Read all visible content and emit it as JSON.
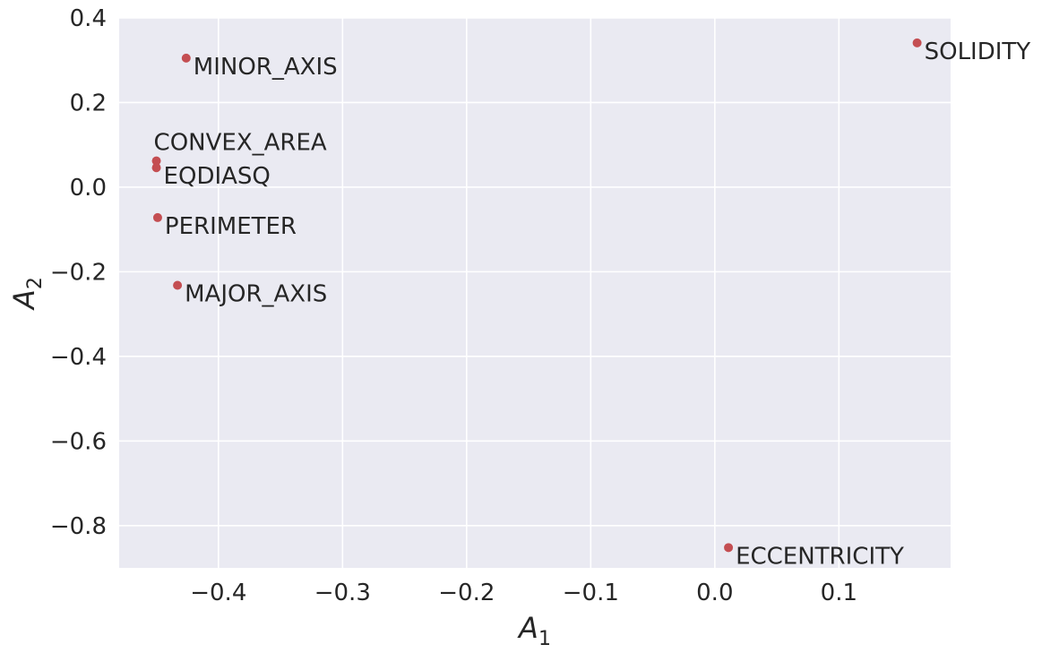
{
  "chart_data": {
    "type": "scatter",
    "title": "",
    "xlabel": "A",
    "xlabel_sub": "1",
    "ylabel": "A",
    "ylabel_sub": "2",
    "xlim": [
      -0.48,
      0.19
    ],
    "ylim": [
      -0.9,
      0.4
    ],
    "grid": true,
    "background": "#eaeaf2",
    "grid_color": "#ffffff",
    "point_color": "#c44e52",
    "xticks": [
      {
        "value": -0.4,
        "label": "−0.4"
      },
      {
        "value": -0.3,
        "label": "−0.3"
      },
      {
        "value": -0.2,
        "label": "−0.2"
      },
      {
        "value": -0.1,
        "label": "−0.1"
      },
      {
        "value": 0.0,
        "label": "0.0"
      },
      {
        "value": 0.1,
        "label": "0.1"
      }
    ],
    "yticks": [
      {
        "value": 0.4,
        "label": "0.4"
      },
      {
        "value": 0.2,
        "label": "0.2"
      },
      {
        "value": 0.0,
        "label": "0.0"
      },
      {
        "value": -0.2,
        "label": "−0.2"
      },
      {
        "value": -0.4,
        "label": "−0.4"
      },
      {
        "value": -0.6,
        "label": "−0.6"
      },
      {
        "value": -0.8,
        "label": "−0.8"
      }
    ],
    "points": [
      {
        "label": "MINOR_AXIS",
        "x": -0.426,
        "y": 0.305,
        "anchor": "below-right"
      },
      {
        "label": "SOLIDITY",
        "x": 0.163,
        "y": 0.341,
        "anchor": "below-right"
      },
      {
        "label": "CONVEX_AREA",
        "x": -0.45,
        "y": 0.062,
        "anchor": "above-right"
      },
      {
        "label": "EQDIASQ",
        "x": -0.45,
        "y": 0.046,
        "anchor": "below-right"
      },
      {
        "label": "PERIMETER",
        "x": -0.449,
        "y": -0.072,
        "anchor": "below-right"
      },
      {
        "label": "MAJOR_AXIS",
        "x": -0.433,
        "y": -0.232,
        "anchor": "below-right"
      },
      {
        "label": "ECCENTRICITY",
        "x": 0.011,
        "y": -0.852,
        "anchor": "below-right"
      }
    ]
  }
}
